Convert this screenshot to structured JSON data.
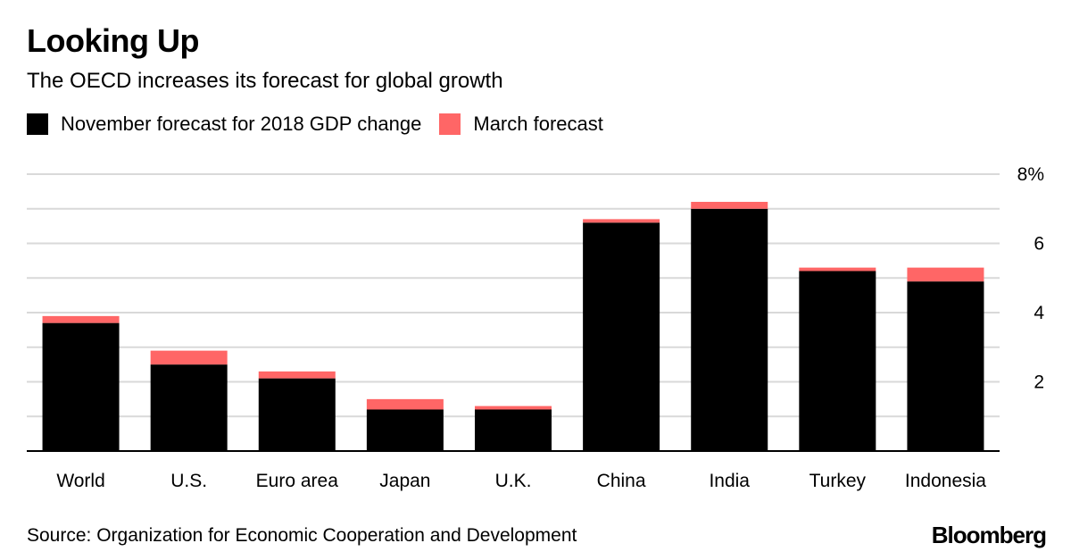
{
  "header": {
    "title": "Looking Up",
    "subtitle": "The OECD increases its forecast for global growth"
  },
  "footer": {
    "source": "Source: Organization for Economic Cooperation and Development",
    "brand": "Bloomberg"
  },
  "chart_data": {
    "type": "bar",
    "stacked": true,
    "title": "Looking Up",
    "subtitle": "The OECD increases its forecast for global growth",
    "xlabel": "",
    "ylabel": "",
    "categories": [
      "World",
      "U.S.",
      "Euro area",
      "Japan",
      "U.K.",
      "China",
      "India",
      "Turkey",
      "Indonesia"
    ],
    "series": [
      {
        "name": "November forecast for 2018 GDP change",
        "color": "#000000",
        "values": [
          3.7,
          2.5,
          2.1,
          1.2,
          1.2,
          6.6,
          7.0,
          5.2,
          4.9
        ]
      },
      {
        "name": "March forecast",
        "color": "#ff6666",
        "values": [
          0.2,
          0.4,
          0.2,
          0.3,
          0.1,
          0.1,
          0.2,
          0.1,
          0.4
        ]
      }
    ],
    "ylim": [
      0,
      8
    ],
    "yticks": [
      2,
      4,
      6,
      8
    ],
    "yticklabels": [
      "2",
      "4",
      "6",
      "8%"
    ],
    "gridlines": [
      1,
      2,
      3,
      4,
      5,
      6,
      7,
      8
    ],
    "grid": true,
    "legend": "top-left",
    "y_axis_side": "right"
  }
}
